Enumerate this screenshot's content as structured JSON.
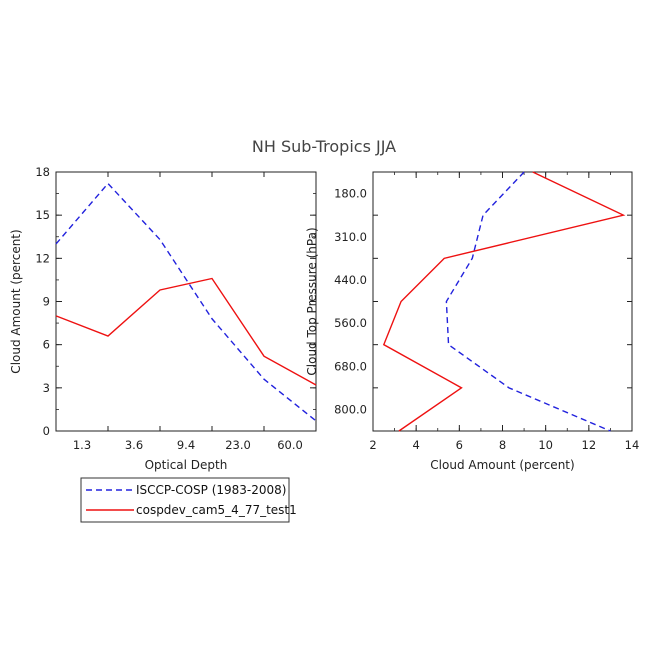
{
  "title": "NH Sub-Tropics JJA",
  "legend": [
    {
      "label": "ISCCP-COSP (1983-2008)",
      "color": "#2222dd",
      "dash": true
    },
    {
      "label": "cospdev_cam5_4_77_test1",
      "color": "#ee1111",
      "dash": false
    }
  ],
  "chart_data": [
    {
      "type": "line",
      "xlabel": "Optical Depth",
      "ylabel": "Cloud Amount (percent)",
      "ylim": [
        0,
        18
      ],
      "yticks": [
        "0",
        "3",
        "6",
        "9",
        "12",
        "15",
        "18"
      ],
      "xticklabels": [
        "1.3",
        "3.6",
        "9.4",
        "23.0",
        "60.0"
      ],
      "x_index": [
        0,
        1,
        2,
        3,
        4,
        5,
        6
      ],
      "series": [
        {
          "name": "ISCCP-COSP (1983-2008)",
          "values": [
            13.0,
            17.2,
            13.3,
            7.8,
            3.6,
            0.7
          ]
        },
        {
          "name": "cospdev_cam5_4_77_test1",
          "values": [
            8.0,
            6.6,
            9.8,
            10.6,
            5.2,
            3.2
          ]
        }
      ],
      "series_x": [
        0.0,
        1.0,
        2.0,
        3.0,
        4.0,
        5.0
      ]
    },
    {
      "type": "line",
      "xlabel": "Cloud Amount (percent)",
      "ylabel": "Cloud Top Pressure (hPa)",
      "xlim": [
        2,
        14
      ],
      "xticks": [
        "2",
        "4",
        "6",
        "8",
        "10",
        "12",
        "14"
      ],
      "yticklabels": [
        "180.0",
        "310.0",
        "440.0",
        "560.0",
        "680.0",
        "800.0"
      ],
      "series": [
        {
          "name": "ISCCP-COSP (1983-2008)",
          "x": [
            9.0,
            7.1,
            6.6,
            5.4,
            5.5,
            8.3,
            13.0
          ],
          "y_index": [
            0.0,
            1.0,
            2.0,
            3.0,
            4.0,
            5.0,
            6.0
          ]
        },
        {
          "name": "cospdev_cam5_4_77_test1",
          "x": [
            9.4,
            13.6,
            5.3,
            3.3,
            2.5,
            6.1,
            3.2
          ],
          "y_index": [
            0.0,
            1.0,
            2.0,
            3.0,
            4.0,
            5.0,
            6.0
          ]
        }
      ]
    }
  ]
}
